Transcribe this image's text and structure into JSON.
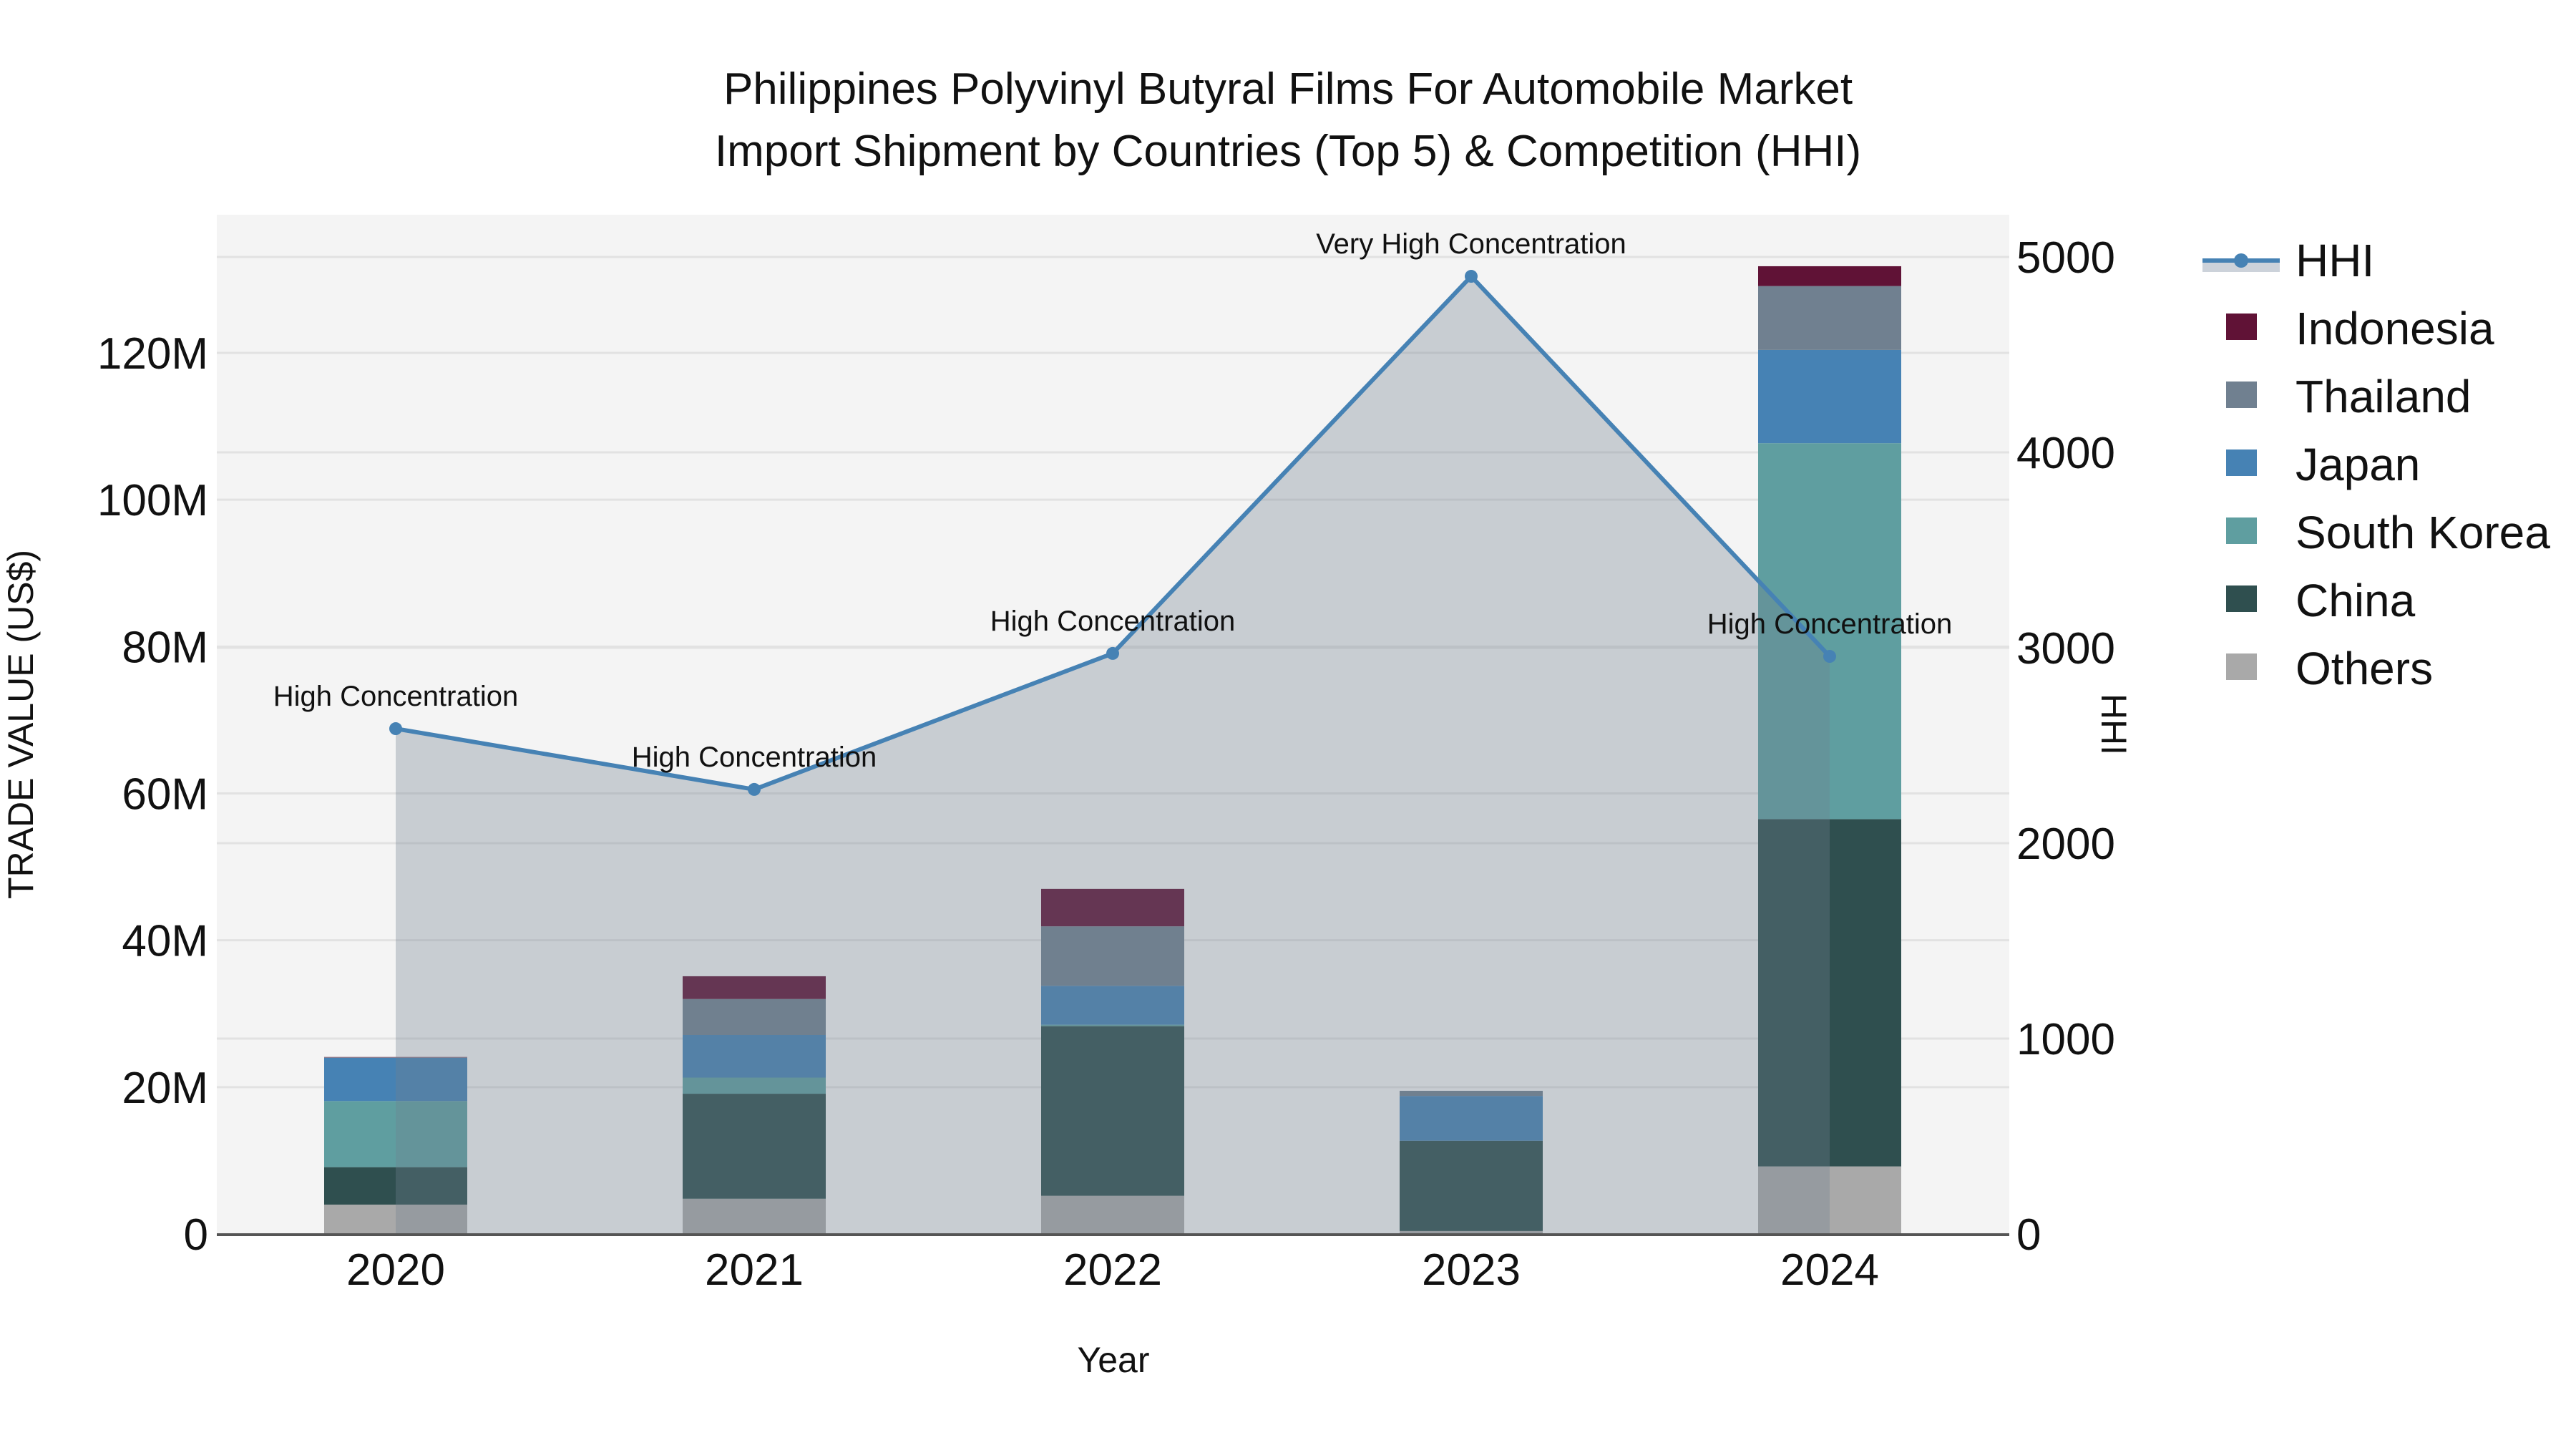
{
  "title_line1": "Philippines Polyvinyl Butyral Films For Automobile Market",
  "title_line2": "Import Shipment by Countries (Top 5) & Competition (HHI)",
  "x_axis_title": "Year",
  "y_axis_left_title": "TRADE VALUE (US$)",
  "y_axis_right_title": "HHI",
  "left_ticks": [
    {
      "value": 0,
      "label": "0"
    },
    {
      "value": 20,
      "label": "20M"
    },
    {
      "value": 40,
      "label": "40M"
    },
    {
      "value": 60,
      "label": "60M"
    },
    {
      "value": 80,
      "label": "80M"
    },
    {
      "value": 100,
      "label": "100M"
    },
    {
      "value": 120,
      "label": "120M"
    }
  ],
  "right_ticks": [
    {
      "value": 0,
      "label": "0"
    },
    {
      "value": 1000,
      "label": "1000"
    },
    {
      "value": 2000,
      "label": "2000"
    },
    {
      "value": 3000,
      "label": "3000"
    },
    {
      "value": 4000,
      "label": "4000"
    },
    {
      "value": 5000,
      "label": "5000"
    }
  ],
  "legend": [
    {
      "name": "HHI",
      "type": "line",
      "color": "#4682b4",
      "fill": "#ccd2da"
    },
    {
      "name": "Indonesia",
      "type": "box",
      "color": "#601236"
    },
    {
      "name": "Thailand",
      "type": "box",
      "color": "#708090"
    },
    {
      "name": "Japan",
      "type": "box",
      "color": "#4682b4"
    },
    {
      "name": "South Korea",
      "type": "box",
      "color": "#5f9ea0"
    },
    {
      "name": "China",
      "type": "box",
      "color": "#2f4f4f"
    },
    {
      "name": "Others",
      "type": "box",
      "color": "#a9a9a9"
    }
  ],
  "colors": {
    "plot_bg": "#f4f4f4",
    "grid": "#e2e2e2",
    "axis_line": "#555555",
    "hhi_line": "#4682b4",
    "hhi_fill": "rgba(112,128,144,0.33)"
  },
  "chart_data": {
    "type": "bar",
    "subtype": "stacked bar + line (secondary axis)",
    "title": "Philippines Polyvinyl Butyral Films For Automobile Market Import Shipment by Countries (Top 5) & Competition (HHI)",
    "xlabel": "Year",
    "ylabel": "TRADE VALUE (US$)",
    "y2label": "HHI",
    "categories": [
      "2020",
      "2021",
      "2022",
      "2023",
      "2024"
    ],
    "units": "US$ millions",
    "ylim": [
      0,
      137
    ],
    "y2lim": [
      0,
      5215
    ],
    "grid": true,
    "legend_position": "right",
    "series": [
      {
        "name": "Others",
        "color": "#a9a9a9",
        "values": [
          4.0,
          4.8,
          5.2,
          0.4,
          9.2
        ]
      },
      {
        "name": "China",
        "color": "#2f4f4f",
        "values": [
          5.1,
          14.3,
          23.1,
          12.3,
          47.3
        ]
      },
      {
        "name": "South Korea",
        "color": "#5f9ea0",
        "values": [
          9.0,
          2.2,
          0.2,
          0.0,
          51.2
        ]
      },
      {
        "name": "Japan",
        "color": "#4682b4",
        "values": [
          5.9,
          5.8,
          5.3,
          6.1,
          12.7
        ]
      },
      {
        "name": "Thailand",
        "color": "#708090",
        "values": [
          0.05,
          4.9,
          8.1,
          0.7,
          8.7
        ]
      },
      {
        "name": "Indonesia",
        "color": "#601236",
        "values": [
          0.05,
          3.1,
          5.1,
          0.0,
          2.7
        ]
      }
    ],
    "line_series": {
      "name": "HHI",
      "axis": "right",
      "color": "#4682b4",
      "values": [
        2586,
        2275,
        2971,
        4901,
        2956
      ],
      "annotations": [
        "High Concentration",
        "High Concentration",
        "High Concentration",
        "Very High Concentration",
        "High Concentration"
      ]
    }
  }
}
